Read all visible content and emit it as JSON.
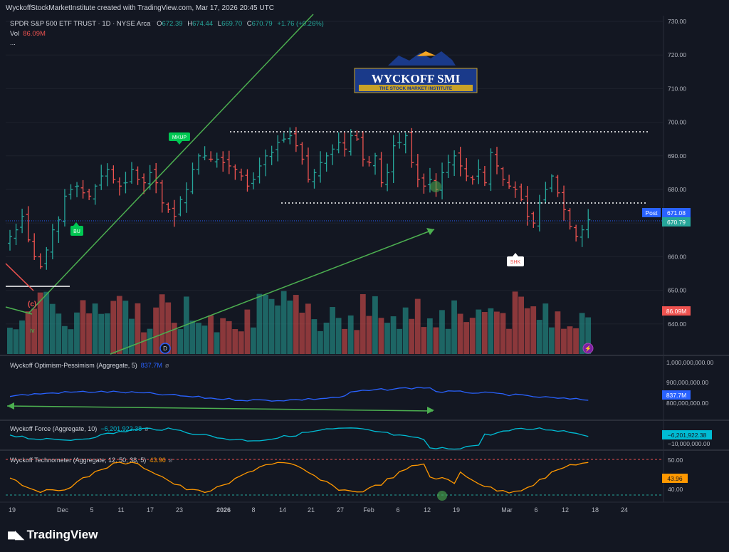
{
  "header": {
    "created_by": "WyckoffStockMarketInstitute created with TradingView.com, Mar 17, 2026 20:45 UTC"
  },
  "legend": {
    "symbol": "SPDR S&P 500 ETF TRUST · 1D · NYSE Arca",
    "o_label": "O",
    "o": "672.39",
    "h_label": "H",
    "h": "674.44",
    "l_label": "L",
    "l": "669.70",
    "c_label": "C",
    "c": "670.79",
    "change": "+1.76 (+0.26%)",
    "vol_label": "Vol",
    "vol": "86.09M",
    "more": "..."
  },
  "logo": {
    "title": "WYCKOFF SMI",
    "subtitle": "THE STOCK MARKET INSTITUTE"
  },
  "price_axis": {
    "ticks": [
      "730.00",
      "720.00",
      "710.00",
      "700.00",
      "690.00",
      "680.00",
      "670.00",
      "660.00",
      "650.00",
      "640.00"
    ],
    "post_label": "Post",
    "post_value": "671.08",
    "last_value": "670.79",
    "vol_value": "86.09M"
  },
  "annotations": {
    "mkup": "MKUP",
    "bu": "BU",
    "shk": "SHK",
    "c": "(c)",
    "iv": "iv",
    "d": "D"
  },
  "indicators": {
    "opt_pess": {
      "label": "Wyckoff Optimism-Pessimism (Aggregate, 5)",
      "value": "837.7M",
      "ticks": [
        "1,000,000,000.00",
        "900,000,000.00",
        "800,000,000.00"
      ],
      "badge": "837.7M"
    },
    "force": {
      "label": "Wyckoff Force (Aggregate, 10)",
      "value": "−6,201,922.38",
      "ticks": [
        "−10,000,000.00"
      ],
      "badge": "−6,201,922.38"
    },
    "techno": {
      "label": "Wyckoff Technometer (Aggregate, 12, 50, 38, 5)",
      "value": "43.96",
      "ticks": [
        "50.00",
        "40.00"
      ],
      "badge": "43.96"
    }
  },
  "time_axis": [
    "19",
    "Dec",
    "5",
    "11",
    "17",
    "23",
    "2026",
    "8",
    "14",
    "21",
    "27",
    "Feb",
    "6",
    "12",
    "19",
    "Mar",
    "6",
    "12",
    "18",
    "24"
  ],
  "footer": {
    "brand": "TradingView"
  },
  "colors": {
    "up": "#26a69a",
    "down": "#ef5350",
    "bg": "#131722",
    "grid": "#1e222d",
    "trend": "#4caf50"
  },
  "chart_data": {
    "type": "bar",
    "title": "SPDR S&P 500 ETF TRUST",
    "interval": "1D",
    "price_range": [
      633,
      732
    ],
    "ohlc_close": [
      666,
      668,
      672,
      665,
      660,
      657,
      662,
      668,
      671,
      678,
      680,
      681,
      679,
      678,
      681,
      684,
      686,
      683,
      681,
      682,
      686,
      683,
      682,
      685,
      682,
      676,
      674,
      672,
      677,
      680,
      686,
      690,
      690,
      689,
      689,
      688,
      687,
      686,
      684,
      681,
      683,
      687,
      690,
      691,
      694,
      695,
      696,
      693,
      689,
      683,
      685,
      688,
      690,
      692,
      694,
      692,
      696,
      695,
      689,
      688,
      690,
      682,
      685,
      693,
      694,
      696,
      688,
      683,
      681,
      683,
      680,
      685,
      688,
      690,
      687,
      684,
      683,
      686,
      682,
      691,
      687,
      683,
      681,
      680,
      677,
      672,
      670,
      676,
      680,
      684,
      679,
      674,
      669,
      666,
      668,
      671
    ],
    "volume_range": [
      0,
      120
    ]
  }
}
